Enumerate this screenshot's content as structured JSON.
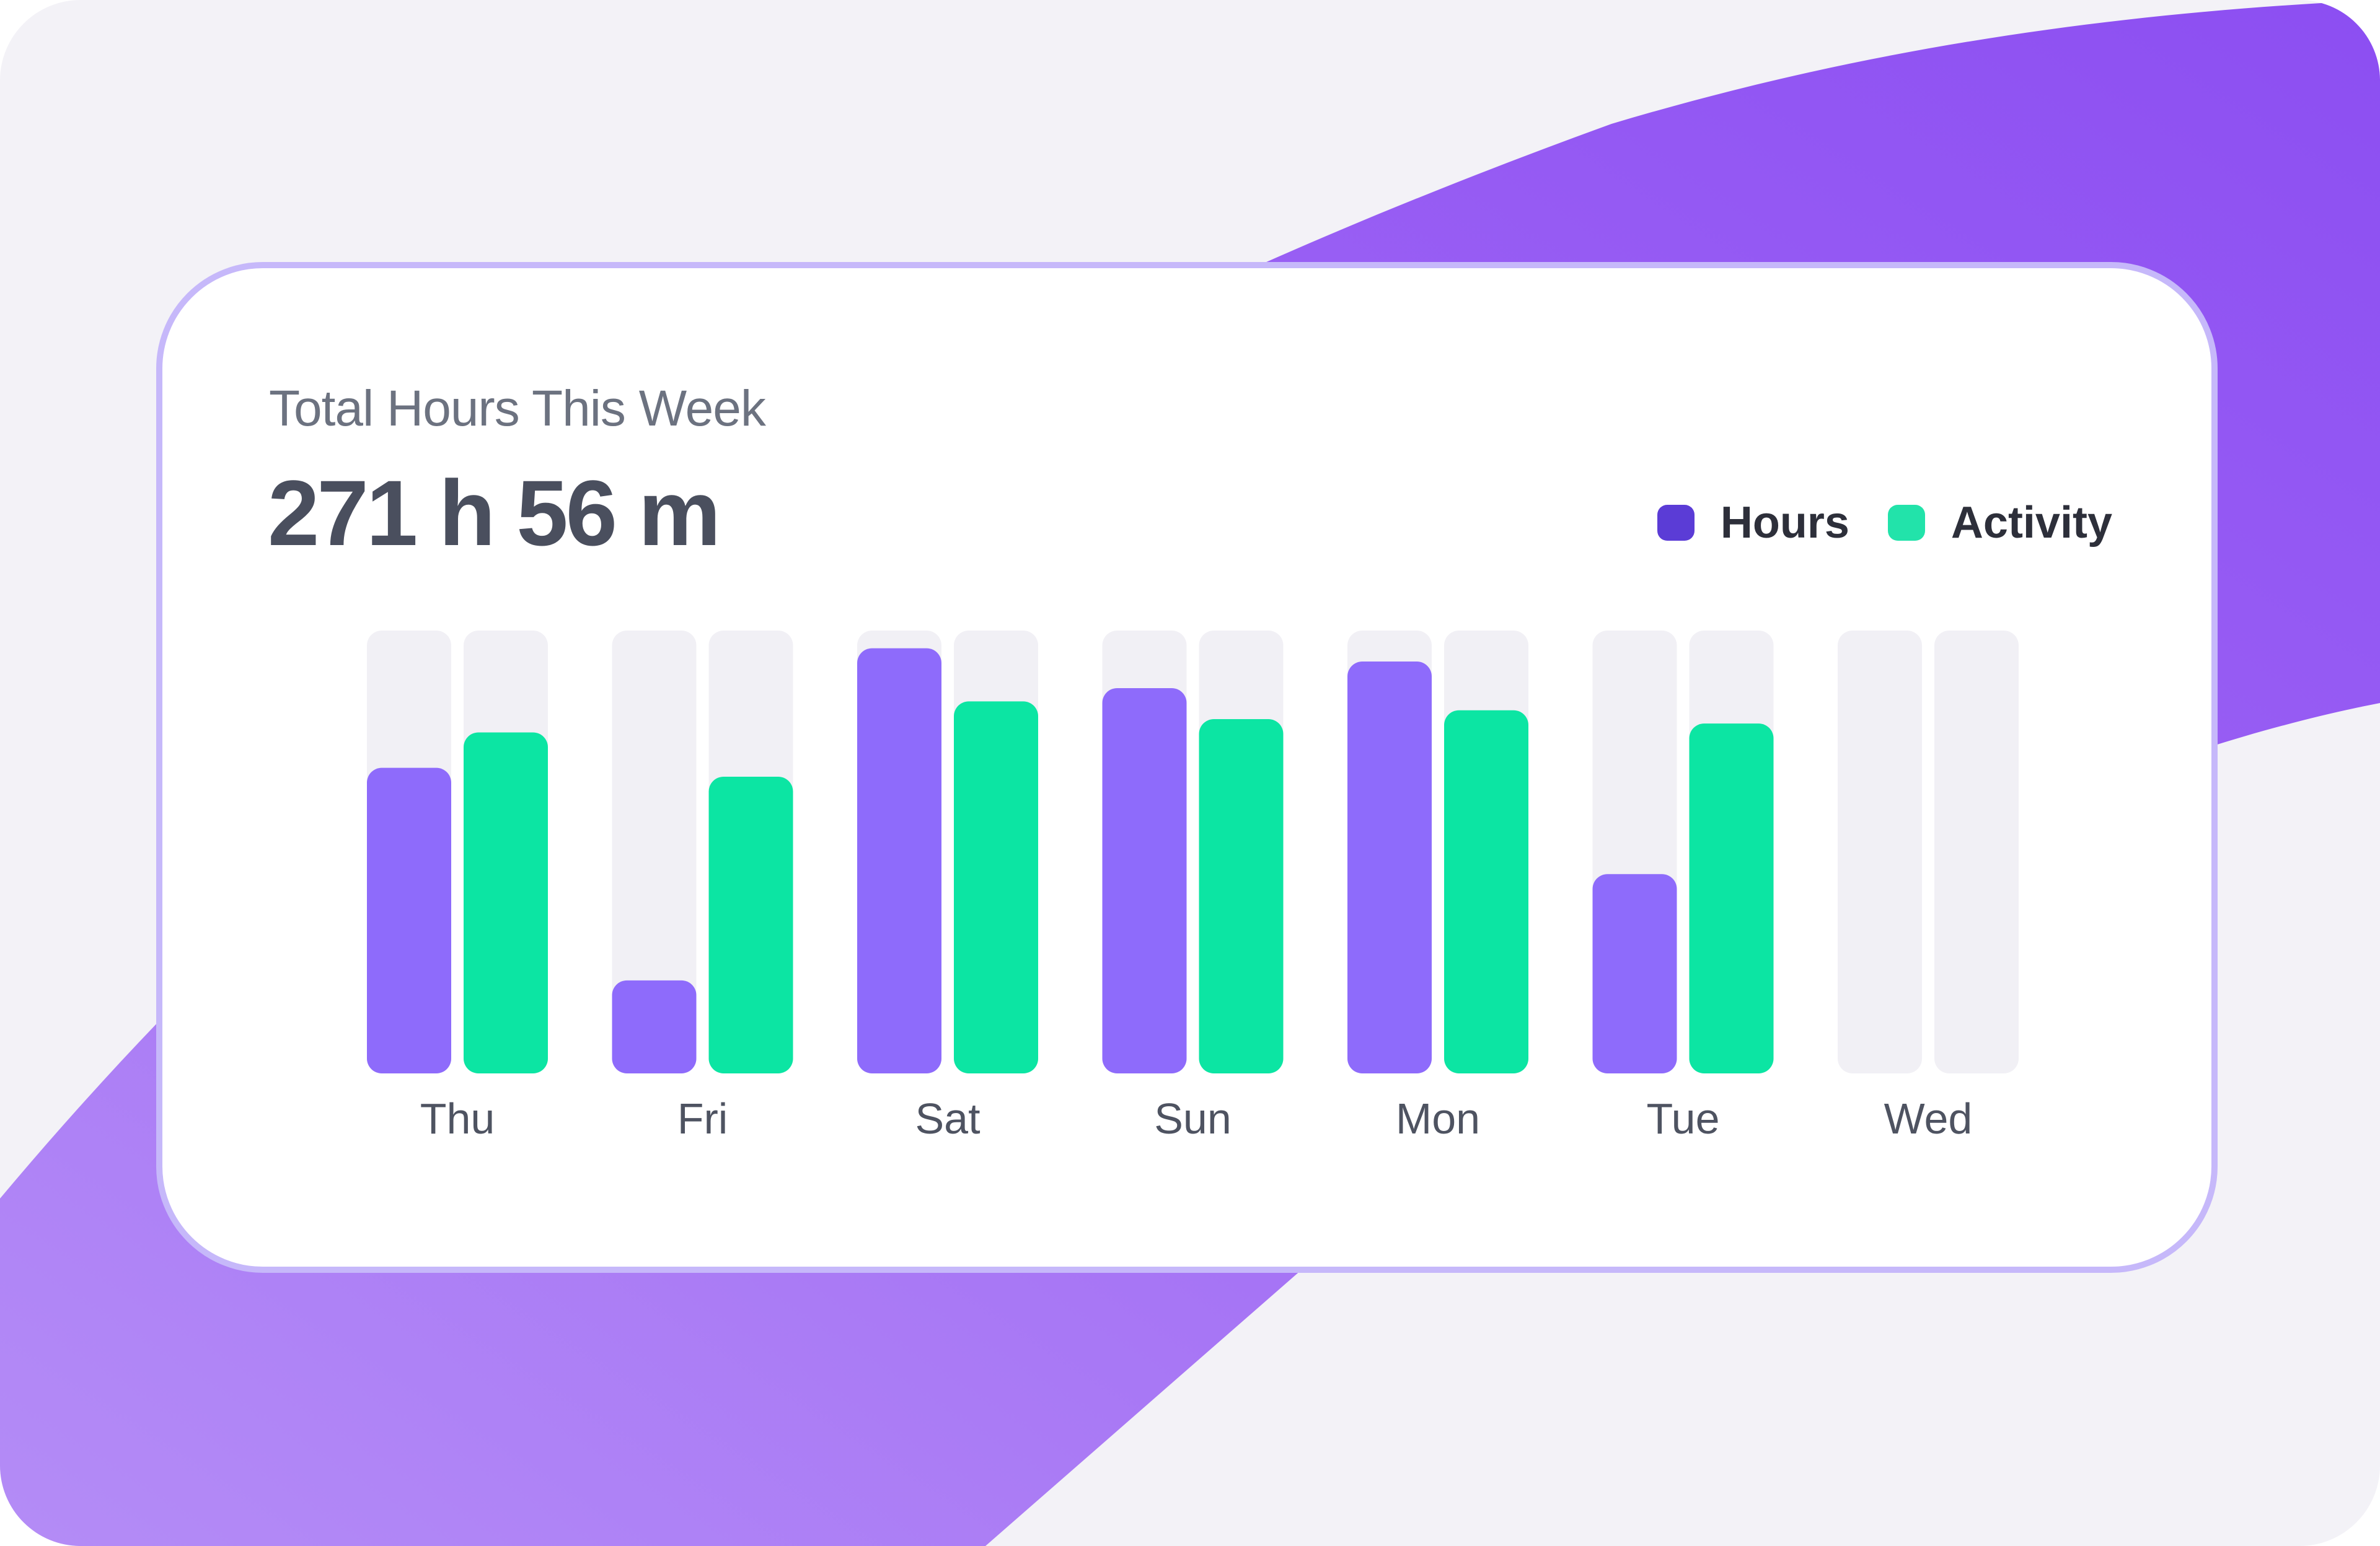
{
  "card": {
    "subtitle": "Total Hours This Week",
    "total": "271 h 56 m"
  },
  "colors": {
    "hours": "#8E6BFB",
    "activity": "#0CE5A3",
    "legend_hours": "#5B3CD6",
    "legend_activity": "#22E3AA",
    "track": "#F1F0F5"
  },
  "chart_data": {
    "type": "bar",
    "title": "Total Hours This Week",
    "categories": [
      "Thu",
      "Fri",
      "Sat",
      "Sun",
      "Mon",
      "Tue",
      "Wed"
    ],
    "series": [
      {
        "name": "Hours",
        "values": [
          69,
          21,
          96,
          87,
          93,
          45,
          0
        ]
      },
      {
        "name": "Activity",
        "values": [
          77,
          67,
          84,
          80,
          82,
          79,
          0
        ]
      }
    ],
    "ylim": [
      0,
      100
    ],
    "xlabel": "",
    "ylabel": "",
    "grid": false,
    "legend": "top-right"
  }
}
